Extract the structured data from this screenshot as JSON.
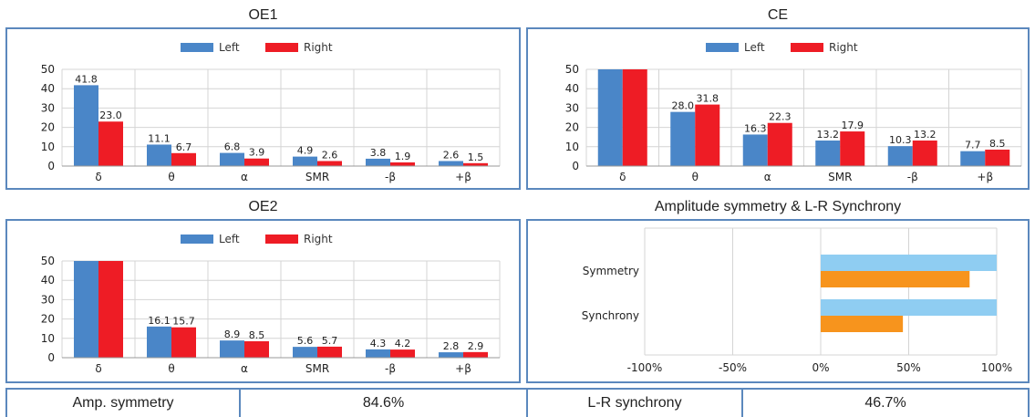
{
  "colors": {
    "left": "#4a86c8",
    "right": "#ee1c25",
    "sym_a": "#8fcdf2",
    "sym_b": "#f7941d",
    "border": "#5b88bd"
  },
  "chart_data": [
    {
      "type": "bar",
      "title": "OE1",
      "categories": [
        "δ",
        "θ",
        "α",
        "SMR",
        "-β",
        "+β"
      ],
      "series": [
        {
          "name": "Left",
          "values": [
            41.8,
            11.1,
            6.8,
            4.9,
            3.8,
            2.6
          ]
        },
        {
          "name": "Right",
          "values": [
            23.0,
            6.7,
            3.9,
            2.6,
            1.9,
            1.5
          ]
        }
      ],
      "labels": {
        "Left": [
          "41.8",
          "11.1",
          "6.8",
          "4.9",
          "3.8",
          "2.6"
        ],
        "Right": [
          "23.0",
          "6.7",
          "3.9",
          "2.6",
          "1.9",
          "1.5"
        ]
      },
      "ylim": [
        0,
        50
      ],
      "yticks": [
        "0",
        "10",
        "20",
        "30",
        "40",
        "50"
      ],
      "grid": true,
      "legend": "top-center"
    },
    {
      "type": "bar",
      "title": "CE",
      "categories": [
        "δ",
        "θ",
        "α",
        "SMR",
        "-β",
        "+β"
      ],
      "series": [
        {
          "name": "Left",
          "values": [
            50,
            28.0,
            16.3,
            13.2,
            10.3,
            7.7
          ]
        },
        {
          "name": "Right",
          "values": [
            50,
            31.8,
            22.3,
            17.9,
            13.2,
            8.5
          ]
        }
      ],
      "labels": {
        "Left": [
          "",
          "28.0",
          "16.3",
          "13.2",
          "10.3",
          "7.7"
        ],
        "Right": [
          "",
          "31.8",
          "22.3",
          "17.9",
          "13.2",
          "8.5"
        ]
      },
      "ylim": [
        0,
        50
      ],
      "yticks": [
        "0",
        "10",
        "20",
        "30",
        "40",
        "50"
      ],
      "grid": true,
      "legend": "top-center"
    },
    {
      "type": "bar",
      "title": "OE2",
      "categories": [
        "δ",
        "θ",
        "α",
        "SMR",
        "-β",
        "+β"
      ],
      "series": [
        {
          "name": "Left",
          "values": [
            50,
            16.1,
            8.9,
            5.6,
            4.3,
            2.8
          ]
        },
        {
          "name": "Right",
          "values": [
            50,
            15.7,
            8.5,
            5.7,
            4.2,
            2.9
          ]
        }
      ],
      "labels": {
        "Left": [
          "",
          "16.1",
          "8.9",
          "5.6",
          "4.3",
          "2.8"
        ],
        "Right": [
          "",
          "15.7",
          "8.5",
          "5.7",
          "4.2",
          "2.9"
        ]
      },
      "ylim": [
        0,
        50
      ],
      "yticks": [
        "0",
        "10",
        "20",
        "30",
        "40",
        "50"
      ],
      "grid": true,
      "legend": "top-center"
    },
    {
      "type": "bar",
      "orientation": "horizontal",
      "title": "Amplitude symmetry & L-R Synchrony",
      "categories": [
        "Symmetry",
        "Synchrony"
      ],
      "series": [
        {
          "name": "",
          "values": [
            100,
            100
          ]
        },
        {
          "name": "",
          "values": [
            84.6,
            46.7
          ]
        }
      ],
      "xlim": [
        -100,
        100
      ],
      "xticks": [
        "-100%",
        "-50%",
        "0%",
        "50%",
        "100%"
      ],
      "grid": true
    }
  ],
  "summary": {
    "amp_symmetry_label": "Amp. symmetry",
    "amp_symmetry_value": "84.6%",
    "lr_sync_label": "L-R synchrony",
    "lr_sync_value": "46.7%"
  }
}
